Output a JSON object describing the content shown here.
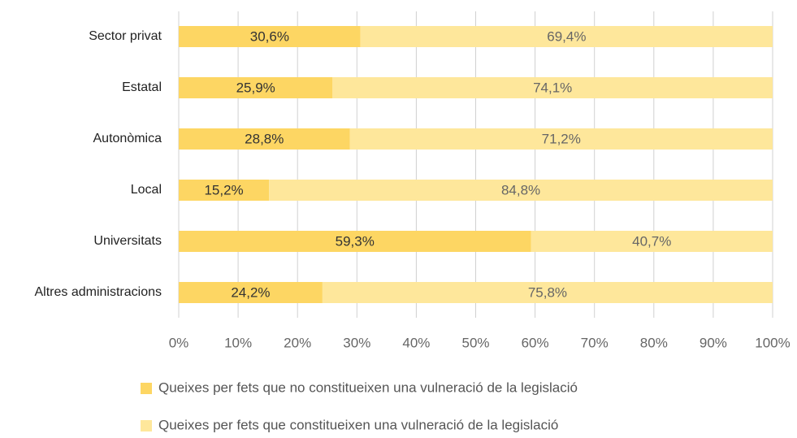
{
  "chart_data": {
    "type": "bar",
    "orientation": "horizontal",
    "stacked": true,
    "categories": [
      "Sector privat",
      "Estatal",
      "Autonòmica",
      "Local",
      "Universitats",
      "Altres administracions"
    ],
    "series": [
      {
        "name": "Queixes per fets que no constitueixen una vulneració de la legislació",
        "color": "#fdd663",
        "values": [
          30.6,
          25.9,
          28.8,
          15.2,
          59.3,
          24.2
        ],
        "value_labels": [
          "30,6%",
          "25,9%",
          "28,8%",
          "15,2%",
          "59,3%",
          "24,2%"
        ]
      },
      {
        "name": "Queixes per fets que constitueixen una vulneració de la legislació",
        "color": "#fee79b",
        "values": [
          69.4,
          74.1,
          71.2,
          84.8,
          40.7,
          75.8
        ],
        "value_labels": [
          "69,4%",
          "74,1%",
          "71,2%",
          "84,8%",
          "40,7%",
          "75,8%"
        ]
      }
    ],
    "xlim": [
      0,
      100
    ],
    "xticks": [
      {
        "value": 0,
        "label": "0%"
      },
      {
        "value": 10,
        "label": "10%"
      },
      {
        "value": 20,
        "label": "20%"
      },
      {
        "value": 30,
        "label": "30%"
      },
      {
        "value": 40,
        "label": "40%"
      },
      {
        "value": 50,
        "label": "50%"
      },
      {
        "value": 60,
        "label": "60%"
      },
      {
        "value": 70,
        "label": "70%"
      },
      {
        "value": 80,
        "label": "80%"
      },
      {
        "value": 90,
        "label": "90%"
      },
      {
        "value": 100,
        "label": "100%"
      }
    ],
    "grid": true,
    "legend": "bottom"
  }
}
